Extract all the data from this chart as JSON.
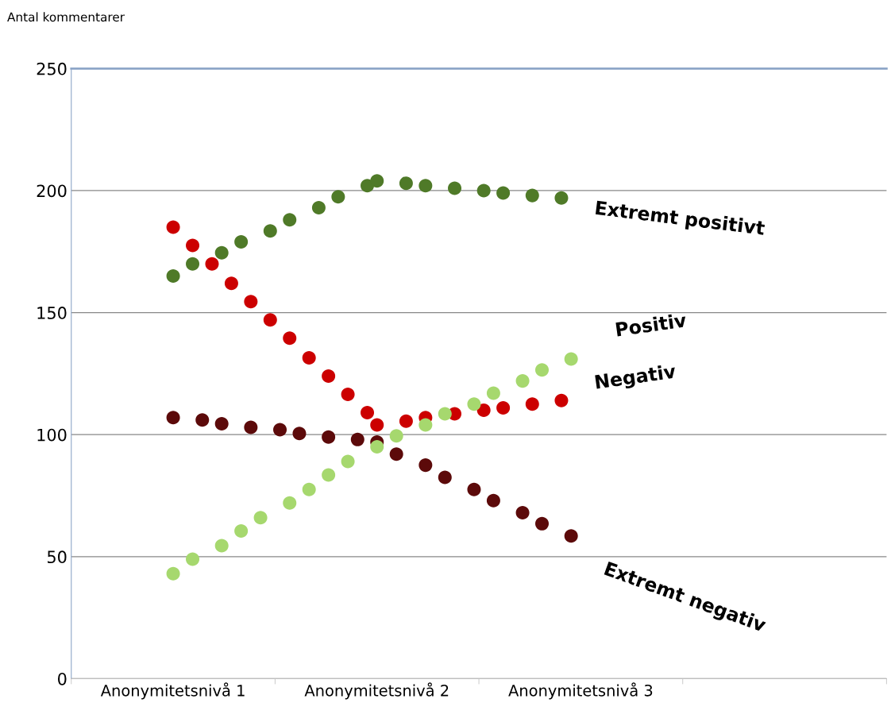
{
  "chart_data": {
    "type": "scatter",
    "ylabel": "Antal kommentarer",
    "categories": [
      null,
      null,
      null,
      null,
      null,
      null,
      null,
      null,
      null,
      null,
      "Anonymitetsnivå 1",
      null,
      null,
      null,
      null,
      null,
      null,
      null,
      null,
      null,
      null,
      null,
      null,
      null,
      null,
      null,
      null,
      null,
      null,
      null,
      null,
      "Anonymitetsnivå 2",
      null,
      null,
      null,
      null,
      null,
      null,
      null,
      null,
      null,
      null,
      null,
      null,
      null,
      null,
      null,
      null,
      null,
      null,
      null,
      null,
      "Anonymitetsnivå 3",
      null,
      null,
      null,
      null,
      null,
      null,
      null,
      null,
      null,
      null,
      null,
      null,
      null,
      null,
      null,
      null,
      null,
      null,
      null,
      null,
      null,
      null,
      null,
      null,
      null,
      null,
      null,
      null,
      null,
      null,
      null
    ],
    "ylim": [
      0,
      250
    ],
    "yticks": [
      0,
      50,
      100,
      150,
      200,
      250
    ],
    "grid": "y",
    "marker": "circle",
    "series": [
      {
        "name": "Extremt positivt",
        "color": "#4f7a28",
        "values": [
          null,
          null,
          null,
          null,
          null,
          null,
          null,
          null,
          null,
          null,
          165,
          null,
          170,
          null,
          null,
          174.5,
          null,
          179,
          null,
          null,
          183.5,
          null,
          188,
          null,
          null,
          193,
          null,
          197.5,
          null,
          null,
          202,
          204,
          null,
          null,
          203,
          null,
          202,
          null,
          null,
          201,
          null,
          null,
          200,
          null,
          199,
          null,
          null,
          198,
          null,
          null,
          197,
          null,
          null,
          null,
          null,
          null,
          null,
          null,
          null,
          null,
          null,
          null,
          null,
          null,
          null,
          null,
          null,
          null,
          null,
          null,
          null,
          null,
          null,
          null,
          null,
          null,
          null,
          null,
          null,
          null,
          null,
          null,
          null,
          null
        ]
      },
      {
        "name": "Positiv",
        "color": "#a6d86e",
        "values": [
          null,
          null,
          null,
          null,
          null,
          null,
          null,
          null,
          null,
          null,
          43,
          null,
          49,
          null,
          null,
          54.5,
          null,
          60.5,
          null,
          66,
          null,
          null,
          72,
          null,
          77.5,
          null,
          83.5,
          null,
          89,
          null,
          null,
          95,
          null,
          99.5,
          null,
          null,
          104,
          null,
          108.5,
          null,
          null,
          112.5,
          null,
          117,
          null,
          null,
          122,
          null,
          126.5,
          null,
          null,
          131,
          null,
          null,
          null,
          null,
          null,
          null,
          null,
          null,
          null,
          null,
          null,
          null,
          null,
          null,
          null,
          null,
          null,
          null,
          null,
          null,
          null,
          null,
          null,
          null,
          null,
          null,
          null,
          null,
          null,
          null,
          null,
          null
        ]
      },
      {
        "name": "Negativ",
        "color": "#cc0000",
        "values": [
          null,
          null,
          null,
          null,
          null,
          null,
          null,
          null,
          null,
          null,
          185,
          null,
          177.5,
          null,
          170,
          null,
          162,
          null,
          154.5,
          null,
          147,
          null,
          139.5,
          null,
          131.5,
          null,
          124,
          null,
          116.5,
          null,
          109,
          104,
          null,
          null,
          105.5,
          null,
          107,
          null,
          null,
          108.5,
          null,
          null,
          110,
          null,
          111,
          null,
          null,
          112.5,
          null,
          null,
          114,
          null,
          null,
          null,
          null,
          null,
          null,
          null,
          null,
          null,
          null,
          null,
          null,
          null,
          null,
          null,
          null,
          null,
          null,
          null,
          null,
          null,
          null,
          null,
          null,
          null,
          null,
          null,
          null,
          null,
          null,
          null,
          null,
          null
        ]
      },
      {
        "name": "Extremt negativ",
        "color": "#5c0a0a",
        "values": [
          null,
          null,
          null,
          null,
          null,
          null,
          null,
          null,
          null,
          null,
          107,
          null,
          null,
          106,
          null,
          104.5,
          null,
          null,
          103,
          null,
          null,
          102,
          null,
          100.5,
          null,
          null,
          99,
          null,
          null,
          98,
          null,
          97,
          null,
          92,
          null,
          null,
          87.5,
          null,
          82.5,
          null,
          null,
          77.5,
          null,
          73,
          null,
          null,
          68,
          null,
          63.5,
          null,
          null,
          58.5,
          null,
          null,
          null,
          null,
          null,
          null,
          null,
          null,
          null,
          null,
          null,
          null,
          null,
          null,
          null,
          null,
          null,
          null,
          null,
          null,
          null,
          null,
          null,
          null,
          null,
          null,
          null,
          null,
          null,
          null,
          null,
          null
        ]
      }
    ]
  }
}
